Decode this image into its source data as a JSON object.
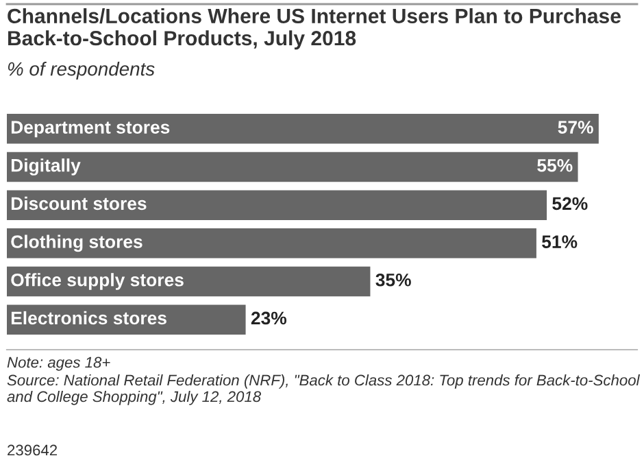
{
  "chart_data": {
    "type": "bar",
    "orientation": "horizontal",
    "title": "Channels/Locations Where US Internet Users Plan to Purchase Back-to-School Products, July 2018",
    "subtitle": "% of respondents",
    "categories": [
      "Department stores",
      "Digitally",
      "Discount stores",
      "Clothing stores",
      "Office supply stores",
      "Electronics stores"
    ],
    "values": [
      57,
      55,
      52,
      51,
      35,
      23
    ],
    "color": "#666666",
    "value_labels": [
      "57%",
      "55%",
      "52%",
      "51%",
      "35%",
      "23%"
    ],
    "annotations": [
      "Note: ages 18+",
      "Source: National Retail Federation (NRF), \"Back to Class 2018: Top trends for Back-to-School and College Shopping\", July 12, 2018",
      "239642"
    ]
  }
}
